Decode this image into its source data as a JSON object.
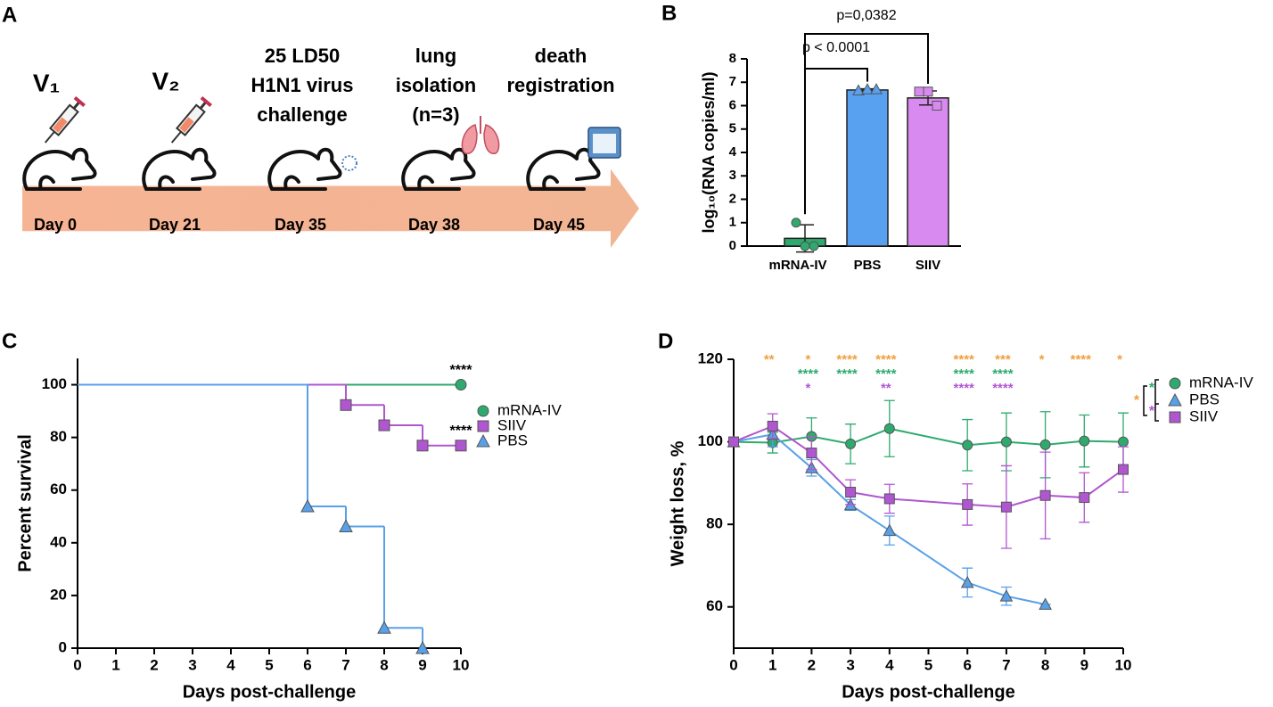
{
  "timeline": {
    "panel": "A",
    "steps": [
      {
        "title": [
          "V₁"
        ],
        "day": "Day 0"
      },
      {
        "title": [
          "V₂"
        ],
        "day": "Day 21"
      },
      {
        "title": [
          "25 LD50",
          "H1N1 virus",
          "challenge"
        ],
        "day": "Day 35"
      },
      {
        "title": [
          "lung",
          "isolation",
          "(n=3)"
        ],
        "day": "Day 38"
      },
      {
        "title": [
          "death",
          "registration"
        ],
        "day": "Day 45"
      }
    ]
  },
  "chart_data": [
    {
      "type": "bar",
      "panel": "B",
      "ylabel": "log₁₀(RNA copies/ml)",
      "categories": [
        "mRNA-IV",
        "PBS",
        "SIIV"
      ],
      "values": [
        0.33,
        6.67,
        6.33
      ],
      "errors": [
        0.58,
        0.05,
        0.3
      ],
      "colors": [
        "#2eaa6e",
        "#58a0f0",
        "#d98af0"
      ],
      "points": [
        [
          1,
          0,
          0
        ],
        [
          6.65,
          6.7,
          6.7
        ],
        [
          6.6,
          6.6,
          6.0
        ]
      ],
      "markers": [
        "circle",
        "triangle",
        "square"
      ],
      "annotations": [
        "p < 0.0001",
        "p=0,0382"
      ],
      "ylim": [
        0,
        8
      ],
      "yticks": [
        0,
        1,
        2,
        3,
        4,
        5,
        6,
        7,
        8
      ]
    },
    {
      "type": "survival",
      "panel": "C",
      "xlabel": "Days post-challenge",
      "ylabel": "Percent survival",
      "xlim": [
        0,
        10
      ],
      "xticks": [
        0,
        1,
        2,
        3,
        4,
        5,
        6,
        7,
        8,
        9,
        10
      ],
      "ylim": [
        0,
        110
      ],
      "yticks": [
        0,
        20,
        40,
        60,
        80,
        100
      ],
      "series": [
        {
          "name": "mRNA-IV",
          "color": "#2eaa6e",
          "marker": "circle",
          "x": [
            0,
            10
          ],
          "values": [
            100,
            100
          ]
        },
        {
          "name": "SIIV",
          "color": "#b056d0",
          "marker": "square",
          "x": [
            0,
            7,
            8,
            9,
            10
          ],
          "values": [
            100,
            92.3,
            84.6,
            76.9,
            76.9
          ]
        },
        {
          "name": "PBS",
          "color": "#58a0e8",
          "marker": "triangle",
          "x": [
            0,
            6,
            7,
            8,
            9
          ],
          "values": [
            100,
            53.8,
            46.2,
            7.7,
            0
          ]
        }
      ],
      "annotations": [
        {
          "text": "****",
          "x": 10,
          "y": 100
        },
        {
          "text": "****",
          "x": 10,
          "y": 76.9
        }
      ]
    },
    {
      "type": "line",
      "panel": "D",
      "xlabel": "Days post-challenge",
      "ylabel": "Weight loss, %",
      "xlim": [
        0,
        10
      ],
      "xticks": [
        0,
        1,
        2,
        3,
        4,
        5,
        6,
        7,
        8,
        9,
        10
      ],
      "ylim": [
        50,
        120
      ],
      "yticks": [
        60,
        80,
        100,
        120
      ],
      "series": [
        {
          "name": "mRNA-IV",
          "color": "#2eaa6e",
          "marker": "circle",
          "x": [
            0,
            1,
            2,
            3,
            4,
            6,
            7,
            8,
            9,
            10
          ],
          "values": [
            100,
            99.8,
            101.3,
            99.5,
            103.2,
            99.2,
            100,
            99.3,
            100.2,
            100
          ],
          "errors": [
            0,
            2.5,
            4.5,
            4.8,
            6.8,
            6.2,
            7,
            8,
            6.3,
            7
          ]
        },
        {
          "name": "PBS",
          "color": "#58a0e8",
          "marker": "triangle",
          "x": [
            0,
            1,
            2,
            3,
            4,
            6,
            7,
            8
          ],
          "values": [
            100,
            101.8,
            93.7,
            84.7,
            78.5,
            65.9,
            62.6,
            60.6
          ],
          "errors": [
            0,
            3,
            2,
            1.3,
            3.5,
            3.5,
            2.2,
            0
          ]
        },
        {
          "name": "SIIV",
          "color": "#b056d0",
          "marker": "square",
          "x": [
            0,
            1,
            2,
            3,
            4,
            6,
            7,
            8,
            9,
            10
          ],
          "values": [
            100,
            103.8,
            97.3,
            87.8,
            86.2,
            84.8,
            84.2,
            87,
            86.5,
            93.3
          ],
          "errors": [
            0,
            3,
            4,
            3,
            3.5,
            5,
            10,
            10.5,
            6,
            5.5
          ]
        }
      ],
      "significance": [
        {
          "color": "#f0a040",
          "x": [
            1,
            2,
            3,
            4,
            6,
            7,
            8,
            9,
            10
          ],
          "labels": [
            "**",
            "*",
            "****",
            "****",
            "****",
            "***",
            "*",
            "****",
            "*"
          ]
        },
        {
          "color": "#2eaa6e",
          "x": [
            2,
            3,
            4,
            6,
            7
          ],
          "labels": [
            "****",
            "****",
            "****",
            "****",
            "****"
          ]
        },
        {
          "color": "#b056d0",
          "x": [
            2,
            4,
            6,
            7
          ],
          "labels": [
            "*",
            "**",
            "****",
            "****"
          ]
        }
      ],
      "legend_marks": [
        {
          "text": "*",
          "color": "#2eaa6e"
        },
        {
          "text": "*",
          "color": "#b056d0"
        },
        {
          "text": "*",
          "color": "#f0a040"
        }
      ]
    }
  ]
}
